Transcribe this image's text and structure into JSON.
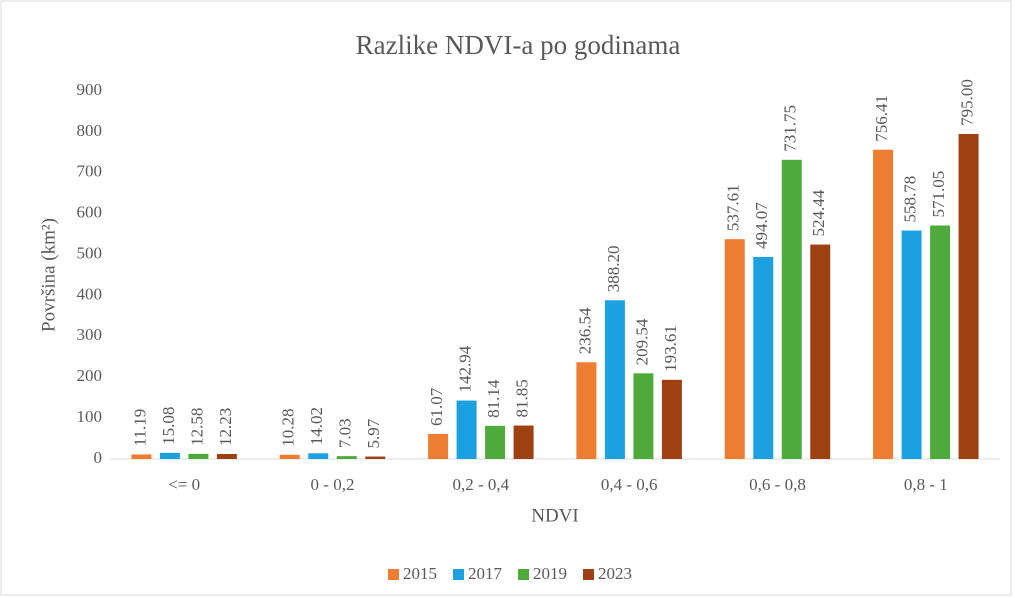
{
  "chart_data": {
    "type": "bar",
    "title": "Razlike NDVI-a po godinama",
    "x_label": "NDVI",
    "y_label": "Površina (km²)",
    "categories": [
      "<= 0",
      "0 - 0,2",
      "0,2 - 0,4",
      "0,4 - 0,6",
      "0,6 - 0,8",
      "0,8 - 1"
    ],
    "series": [
      {
        "name": "2015",
        "color": "#ed7d31",
        "values": [
          11.19,
          10.28,
          61.07,
          236.54,
          537.61,
          756.41
        ],
        "value_labels": [
          "11.19",
          "10.28",
          "61.07",
          "236.54",
          "537.61",
          "756.41"
        ]
      },
      {
        "name": "2017",
        "color": "#1ba1e2",
        "values": [
          15.08,
          14.02,
          142.94,
          388.2,
          494.07,
          558.78
        ],
        "value_labels": [
          "15.08",
          "14.02",
          "142.94",
          "388.20",
          "494.07",
          "558.78"
        ]
      },
      {
        "name": "2019",
        "color": "#4daa3b",
        "values": [
          12.58,
          7.03,
          81.14,
          209.54,
          731.75,
          571.05
        ],
        "value_labels": [
          "12.58",
          "7.03",
          "81.14",
          "209.54",
          "731.75",
          "571.05"
        ]
      },
      {
        "name": "2023",
        "color": "#9e4012",
        "values": [
          12.23,
          5.97,
          81.85,
          193.61,
          524.44,
          795.0
        ],
        "value_labels": [
          "12.23",
          "5.97",
          "81.85",
          "193.61",
          "524.44",
          "795.00"
        ]
      }
    ],
    "ylim": [
      0,
      900
    ],
    "yticks": [
      0,
      100,
      200,
      300,
      400,
      500,
      600,
      700,
      800,
      900
    ],
    "legend": "bottom"
  }
}
